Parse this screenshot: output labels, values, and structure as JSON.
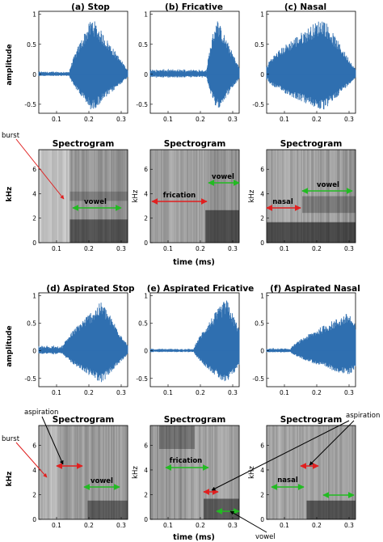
{
  "chart_data": {
    "type": "grid",
    "rows": [
      {
        "panel_type": "waveform",
        "ylabel": "amplitude",
        "xticks": [
          "0.1",
          "0.2",
          "0.3"
        ],
        "yticks": [
          "1",
          "0.5",
          "0",
          "-0.5"
        ],
        "panels": [
          {
            "title": "(a) Stop",
            "peak_time": 0.21,
            "onset": 0.14,
            "end": 0.31,
            "pre_noise": 0.05,
            "max_amp": 0.95
          },
          {
            "title": "(b) Fricative",
            "peak_time": 0.25,
            "onset": 0.22,
            "end": 0.31,
            "pre_noise": 0.09,
            "max_amp": 0.95
          },
          {
            "title": "(c) Nasal",
            "peak_time": 0.22,
            "onset": 0.05,
            "end": 0.31,
            "pre_noise": 0.2,
            "max_amp": 0.95
          }
        ]
      },
      {
        "panel_type": "spectrogram",
        "title": "Spectrogram",
        "ylabel": "kHz",
        "xticks": [
          "0.1",
          "0.2",
          "0.3"
        ],
        "yticks": [
          "0",
          "2",
          "4",
          "6"
        ],
        "xlabel": "time (ms)"
      },
      {
        "panel_type": "waveform",
        "ylabel": "amplitude",
        "xticks_default": [
          "0.1",
          "0.2",
          "0.3"
        ],
        "panels": [
          {
            "title": "(d) Aspirated Stop",
            "yticks": [
              "1",
              "0.5",
              "0",
              "-0.5"
            ],
            "xticks": [
              "0.1",
              "0.2",
              "0.3"
            ]
          },
          {
            "title": "(e) Aspirated Fricative",
            "yticks": [
              "1",
              "0.5",
              "0",
              "-0.5"
            ],
            "xticks": [
              "0.1",
              "0.2",
              "0.3"
            ]
          },
          {
            "title": "(f) Aspirated Nasal",
            "yticks": [
              "1",
              "0.5",
              "0",
              "-0.5"
            ],
            "xticks": [
              "0.1",
              "0.2",
              "0.3"
            ]
          }
        ]
      },
      {
        "panel_type": "spectrogram",
        "title": "Spectrogram",
        "ylabel": "kHz",
        "xticks": [
          "0.1",
          "0.2",
          "0.3"
        ],
        "yticks": [
          "0",
          "2",
          "4",
          "6"
        ],
        "xlabel": "time (ms)"
      }
    ],
    "annotations": {
      "burst": "burst",
      "vowel": "vowel",
      "fricative_label": "frication",
      "nasal": "nasal",
      "aspiration": "aspiration"
    },
    "colors": {
      "wave": "#2f6fb0",
      "red_arrow": "#e02020",
      "green_arrow": "#22bb22"
    }
  }
}
